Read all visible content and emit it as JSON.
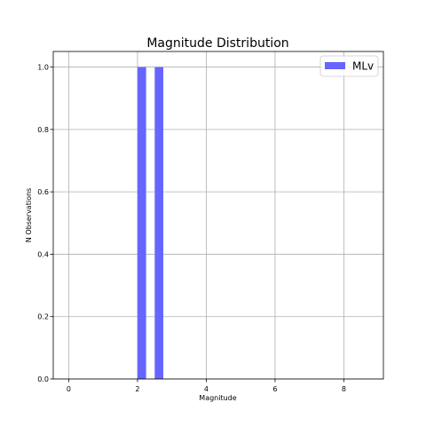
{
  "chart_data": {
    "type": "bar",
    "title": "Magnitude Distribution",
    "xlabel": "Magnitude",
    "ylabel": "N Observations",
    "xlim": [
      -0.45,
      9.15
    ],
    "ylim": [
      0.0,
      1.05
    ],
    "xticks": [
      "0",
      "2",
      "4",
      "6",
      "8"
    ],
    "yticks": [
      "0.0",
      "0.2",
      "0.4",
      "0.6",
      "0.8",
      "1.0"
    ],
    "grid": true,
    "legend_position": "top-right",
    "series": [
      {
        "name": "MLv",
        "color": "#6666ff",
        "bars": [
          {
            "x0": 2.0,
            "x1": 2.25,
            "value": 1.0
          },
          {
            "x0": 2.5,
            "x1": 2.75,
            "value": 1.0
          }
        ]
      }
    ]
  }
}
